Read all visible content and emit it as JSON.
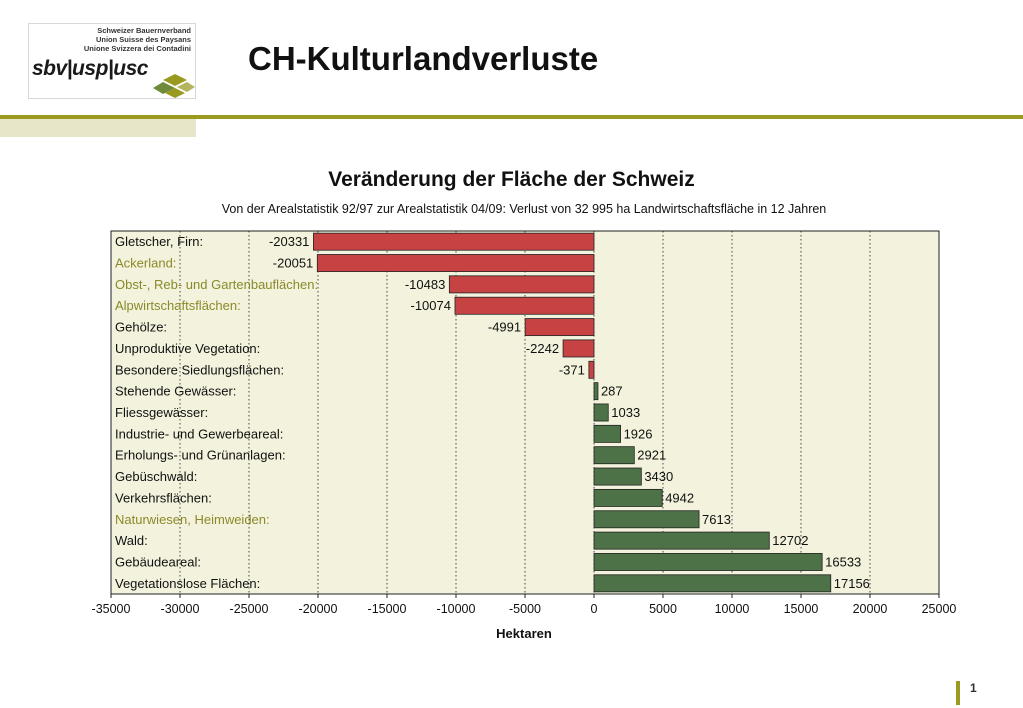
{
  "header": {
    "logo_lines": [
      "Schweizer Bauernverband",
      "Union Suisse des Paysans",
      "Unione Svizzera dei Contadini"
    ],
    "logo_word": "sbv|usp|usc",
    "title": "CH-Kulturlandverluste",
    "accent_color": "#9a9a20"
  },
  "footer": {
    "page_number": "1"
  },
  "chart_data": {
    "type": "bar",
    "orientation": "horizontal",
    "title": "Veränderung der Fläche der Schweiz",
    "subtitle": "Von der Arealstatistik 92/97 zur Arealstatistik 04/09: Verlust von 32 995 ha Landwirtschaftsfläche in 12 Jahren",
    "xlabel": "Hektaren",
    "xlim": [
      -35000,
      25000
    ],
    "xticks": [
      -35000,
      -30000,
      -25000,
      -20000,
      -15000,
      -10000,
      -5000,
      0,
      5000,
      10000,
      15000,
      20000,
      25000
    ],
    "grid": "vertical dotted",
    "negative_color": "#c74343",
    "positive_color": "#4e7248",
    "highlight_label_color": "#8a8a2a",
    "categories": [
      {
        "label": "Gletscher, Firn:",
        "value": -20331,
        "highlight": false
      },
      {
        "label": "Ackerland:",
        "value": -20051,
        "highlight": true
      },
      {
        "label": "Obst-, Reb- und Gartenbauflächen:",
        "value": -10483,
        "highlight": true
      },
      {
        "label": "Alpwirtschaftsflächen:",
        "value": -10074,
        "highlight": true
      },
      {
        "label": "Gehölze:",
        "value": -4991,
        "highlight": false
      },
      {
        "label": "Unproduktive Vegetation:",
        "value": -2242,
        "highlight": false
      },
      {
        "label": "Besondere Siedlungsflächen:",
        "value": -371,
        "highlight": false
      },
      {
        "label": "Stehende Gewässer:",
        "value": 287,
        "highlight": false
      },
      {
        "label": "Fliessgewässer:",
        "value": 1033,
        "highlight": false
      },
      {
        "label": "Industrie- und Gewerbeareal:",
        "value": 1926,
        "highlight": false
      },
      {
        "label": "Erholungs- und Grünanlagen:",
        "value": 2921,
        "highlight": false
      },
      {
        "label": "Gebüschwald:",
        "value": 3430,
        "highlight": false
      },
      {
        "label": "Verkehrsflächen:",
        "value": 4942,
        "highlight": false
      },
      {
        "label": "Naturwiesen, Heimweiden:",
        "value": 7613,
        "highlight": true
      },
      {
        "label": "Wald:",
        "value": 12702,
        "highlight": false
      },
      {
        "label": "Gebäudeareal:",
        "value": 16533,
        "highlight": false
      },
      {
        "label": "Vegetationslose Flächen:",
        "value": 17156,
        "highlight": false
      }
    ]
  }
}
